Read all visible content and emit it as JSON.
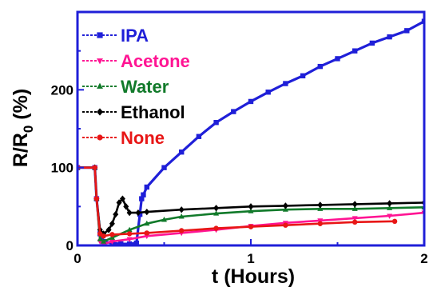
{
  "chart_data": {
    "type": "line",
    "xlabel": "t (Hours)",
    "ylabel_main": "R/R",
    "ylabel_sub": "0",
    "ylabel_unit": " (%)",
    "xlim": [
      0,
      2
    ],
    "ylim": [
      0,
      300
    ],
    "xticks": [
      0,
      1,
      2
    ],
    "yticks": [
      0,
      100,
      200
    ],
    "legend_position": "top-left",
    "series": [
      {
        "name": "IPA",
        "color": "#1f1fd8",
        "marker": "square",
        "x": [
          0.0,
          0.1,
          0.11,
          0.13,
          0.15,
          0.2,
          0.25,
          0.3,
          0.34,
          0.36,
          0.37,
          0.38,
          0.4,
          0.5,
          0.6,
          0.7,
          0.8,
          0.9,
          1.0,
          1.1,
          1.2,
          1.3,
          1.4,
          1.5,
          1.6,
          1.7,
          1.8,
          1.9,
          2.0
        ],
        "y": [
          100,
          100,
          60,
          15,
          5,
          3,
          2,
          2,
          3,
          40,
          60,
          65,
          75,
          100,
          120,
          140,
          158,
          172,
          185,
          197,
          208,
          218,
          230,
          240,
          250,
          260,
          268,
          276,
          288
        ]
      },
      {
        "name": "Acetone",
        "color": "#ff1493",
        "marker": "triangle-down",
        "x": [
          0.0,
          0.1,
          0.11,
          0.13,
          0.15,
          0.2,
          0.3,
          0.4,
          0.6,
          0.8,
          1.0,
          1.2,
          1.4,
          1.6,
          1.8,
          2.0
        ],
        "y": [
          100,
          100,
          60,
          5,
          2,
          5,
          8,
          12,
          16,
          20,
          25,
          29,
          32,
          35,
          38,
          42
        ]
      },
      {
        "name": "Water",
        "color": "#117a2a",
        "marker": "triangle-up",
        "x": [
          0.0,
          0.1,
          0.11,
          0.13,
          0.15,
          0.2,
          0.3,
          0.4,
          0.5,
          0.6,
          0.8,
          1.0,
          1.2,
          1.4,
          1.6,
          1.8,
          2.0
        ],
        "y": [
          100,
          100,
          60,
          8,
          5,
          10,
          20,
          28,
          33,
          37,
          41,
          44,
          46,
          47,
          47,
          48,
          49
        ]
      },
      {
        "name": "Ethanol",
        "color": "#000000",
        "marker": "diamond",
        "x": [
          0.0,
          0.1,
          0.11,
          0.13,
          0.15,
          0.18,
          0.2,
          0.22,
          0.24,
          0.26,
          0.28,
          0.3,
          0.35,
          0.4,
          0.6,
          0.8,
          1.0,
          1.2,
          1.4,
          1.6,
          1.8,
          2.0
        ],
        "y": [
          100,
          100,
          60,
          20,
          15,
          20,
          28,
          40,
          55,
          60,
          50,
          42,
          42,
          43,
          46,
          48,
          50,
          51,
          52,
          53,
          54,
          55
        ]
      },
      {
        "name": "None",
        "color": "#e81616",
        "marker": "circle",
        "x": [
          0.0,
          0.1,
          0.11,
          0.13,
          0.15,
          0.2,
          0.3,
          0.4,
          0.6,
          0.8,
          1.0,
          1.2,
          1.4,
          1.6,
          1.83
        ],
        "y": [
          100,
          100,
          60,
          15,
          12,
          14,
          15,
          16,
          19,
          22,
          24,
          26,
          28,
          30,
          31
        ]
      }
    ]
  }
}
